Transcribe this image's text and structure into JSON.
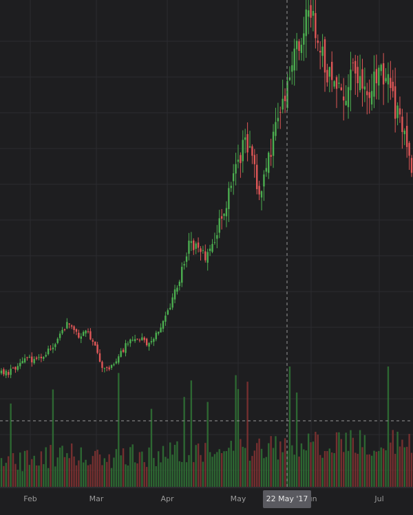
{
  "chart_data": {
    "type": "candlestick",
    "x_ticks": [
      "Feb",
      "Mar",
      "Apr",
      "May",
      "Jun",
      "Jul"
    ],
    "crosshair": {
      "date_label": "22 May '17"
    },
    "grid": true,
    "colors": {
      "background": "#1e1e20",
      "grid": "#2c2c30",
      "up": "#4caf50",
      "down": "#e05757",
      "crosshair": "#9a9a9a",
      "label_bg": "#5a5a60",
      "label_text": "#ffffff"
    },
    "price_series": [
      {
        "date": "Jan 14",
        "close": 8
      },
      {
        "date": "Jan 21",
        "close": 10
      },
      {
        "date": "Jan 28",
        "close": 20
      },
      {
        "date": "Feb 04",
        "close": 32
      },
      {
        "date": "Feb 11",
        "close": 26
      },
      {
        "date": "Feb 18",
        "close": 38
      },
      {
        "date": "Feb 25",
        "close": 52
      },
      {
        "date": "Mar 04",
        "close": 78
      },
      {
        "date": "Mar 11",
        "close": 92
      },
      {
        "date": "Mar 15",
        "close": 68
      },
      {
        "date": "Mar 18",
        "close": 82
      },
      {
        "date": "Mar 22",
        "close": 48
      },
      {
        "date": "Mar 26",
        "close": 12
      },
      {
        "date": "Mar 29",
        "close": 22
      },
      {
        "date": "Apr 05",
        "close": 42
      },
      {
        "date": "Apr 12",
        "close": 62
      },
      {
        "date": "Apr 19",
        "close": 68
      },
      {
        "date": "Apr 22",
        "close": 58
      },
      {
        "date": "Apr 26",
        "close": 70
      },
      {
        "date": "May 01",
        "close": 95
      },
      {
        "date": "May 05",
        "close": 128
      },
      {
        "date": "May 08",
        "close": 170
      },
      {
        "date": "May 11",
        "close": 220
      },
      {
        "date": "May 13",
        "close": 210
      },
      {
        "date": "May 15",
        "close": 196
      },
      {
        "date": "May 17",
        "close": 232
      },
      {
        "date": "May 19",
        "close": 268
      },
      {
        "date": "May 21",
        "close": 320
      },
      {
        "date": "May 23",
        "close": 365
      },
      {
        "date": "May 25",
        "close": 390
      },
      {
        "date": "May 27",
        "close": 300
      },
      {
        "date": "May 29",
        "close": 345
      },
      {
        "date": "Jun 01",
        "close": 400
      },
      {
        "date": "Jun 03",
        "close": 440
      },
      {
        "date": "Jun 06",
        "close": 520
      },
      {
        "date": "Jun 08",
        "close": 560
      },
      {
        "date": "Jun 11",
        "close": 585
      },
      {
        "date": "Jun 13",
        "close": 560
      },
      {
        "date": "Jun 16",
        "close": 510
      },
      {
        "date": "Jun 20",
        "close": 470
      },
      {
        "date": "Jun 23",
        "close": 450
      },
      {
        "date": "Jun 25",
        "close": 520
      },
      {
        "date": "Jun 29",
        "close": 490
      },
      {
        "date": "Jul 03",
        "close": 470
      },
      {
        "date": "Jul 06",
        "close": 490
      },
      {
        "date": "Jul 09",
        "close": 500
      },
      {
        "date": "Jul 12",
        "close": 440
      },
      {
        "date": "Jul 15",
        "close": 400
      },
      {
        "date": "Jul 17",
        "close": 330
      }
    ]
  }
}
